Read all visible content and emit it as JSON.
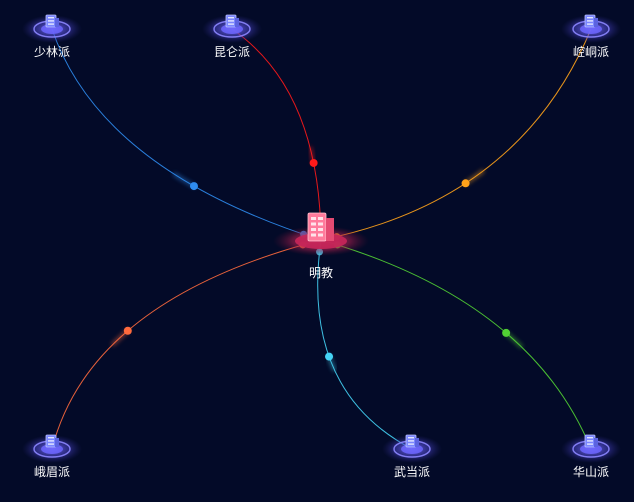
{
  "center": {
    "label": "明教",
    "icon": "building-icon",
    "color": "#e8366b"
  },
  "nodes": [
    {
      "id": "shaolin",
      "label": "少林派",
      "icon": "building-icon",
      "edge_color": "#2f8cf0"
    },
    {
      "id": "kunlun",
      "label": "昆仑派",
      "icon": "building-icon",
      "edge_color": "#ff1a1a"
    },
    {
      "id": "kongtong",
      "label": "崆峒派",
      "icon": "building-icon",
      "edge_color": "#ffa21a"
    },
    {
      "id": "emei",
      "label": "峨眉派",
      "icon": "building-icon",
      "edge_color": "#ff6a3d"
    },
    {
      "id": "wudang",
      "label": "武当派",
      "icon": "building-icon",
      "edge_color": "#45d3f5"
    },
    {
      "id": "huashan",
      "label": "华山派",
      "icon": "building-icon",
      "edge_color": "#52d134"
    }
  ],
  "colors": {
    "background": "#030a28",
    "node_glow": "#6a63ff",
    "label": "#ffffff"
  }
}
